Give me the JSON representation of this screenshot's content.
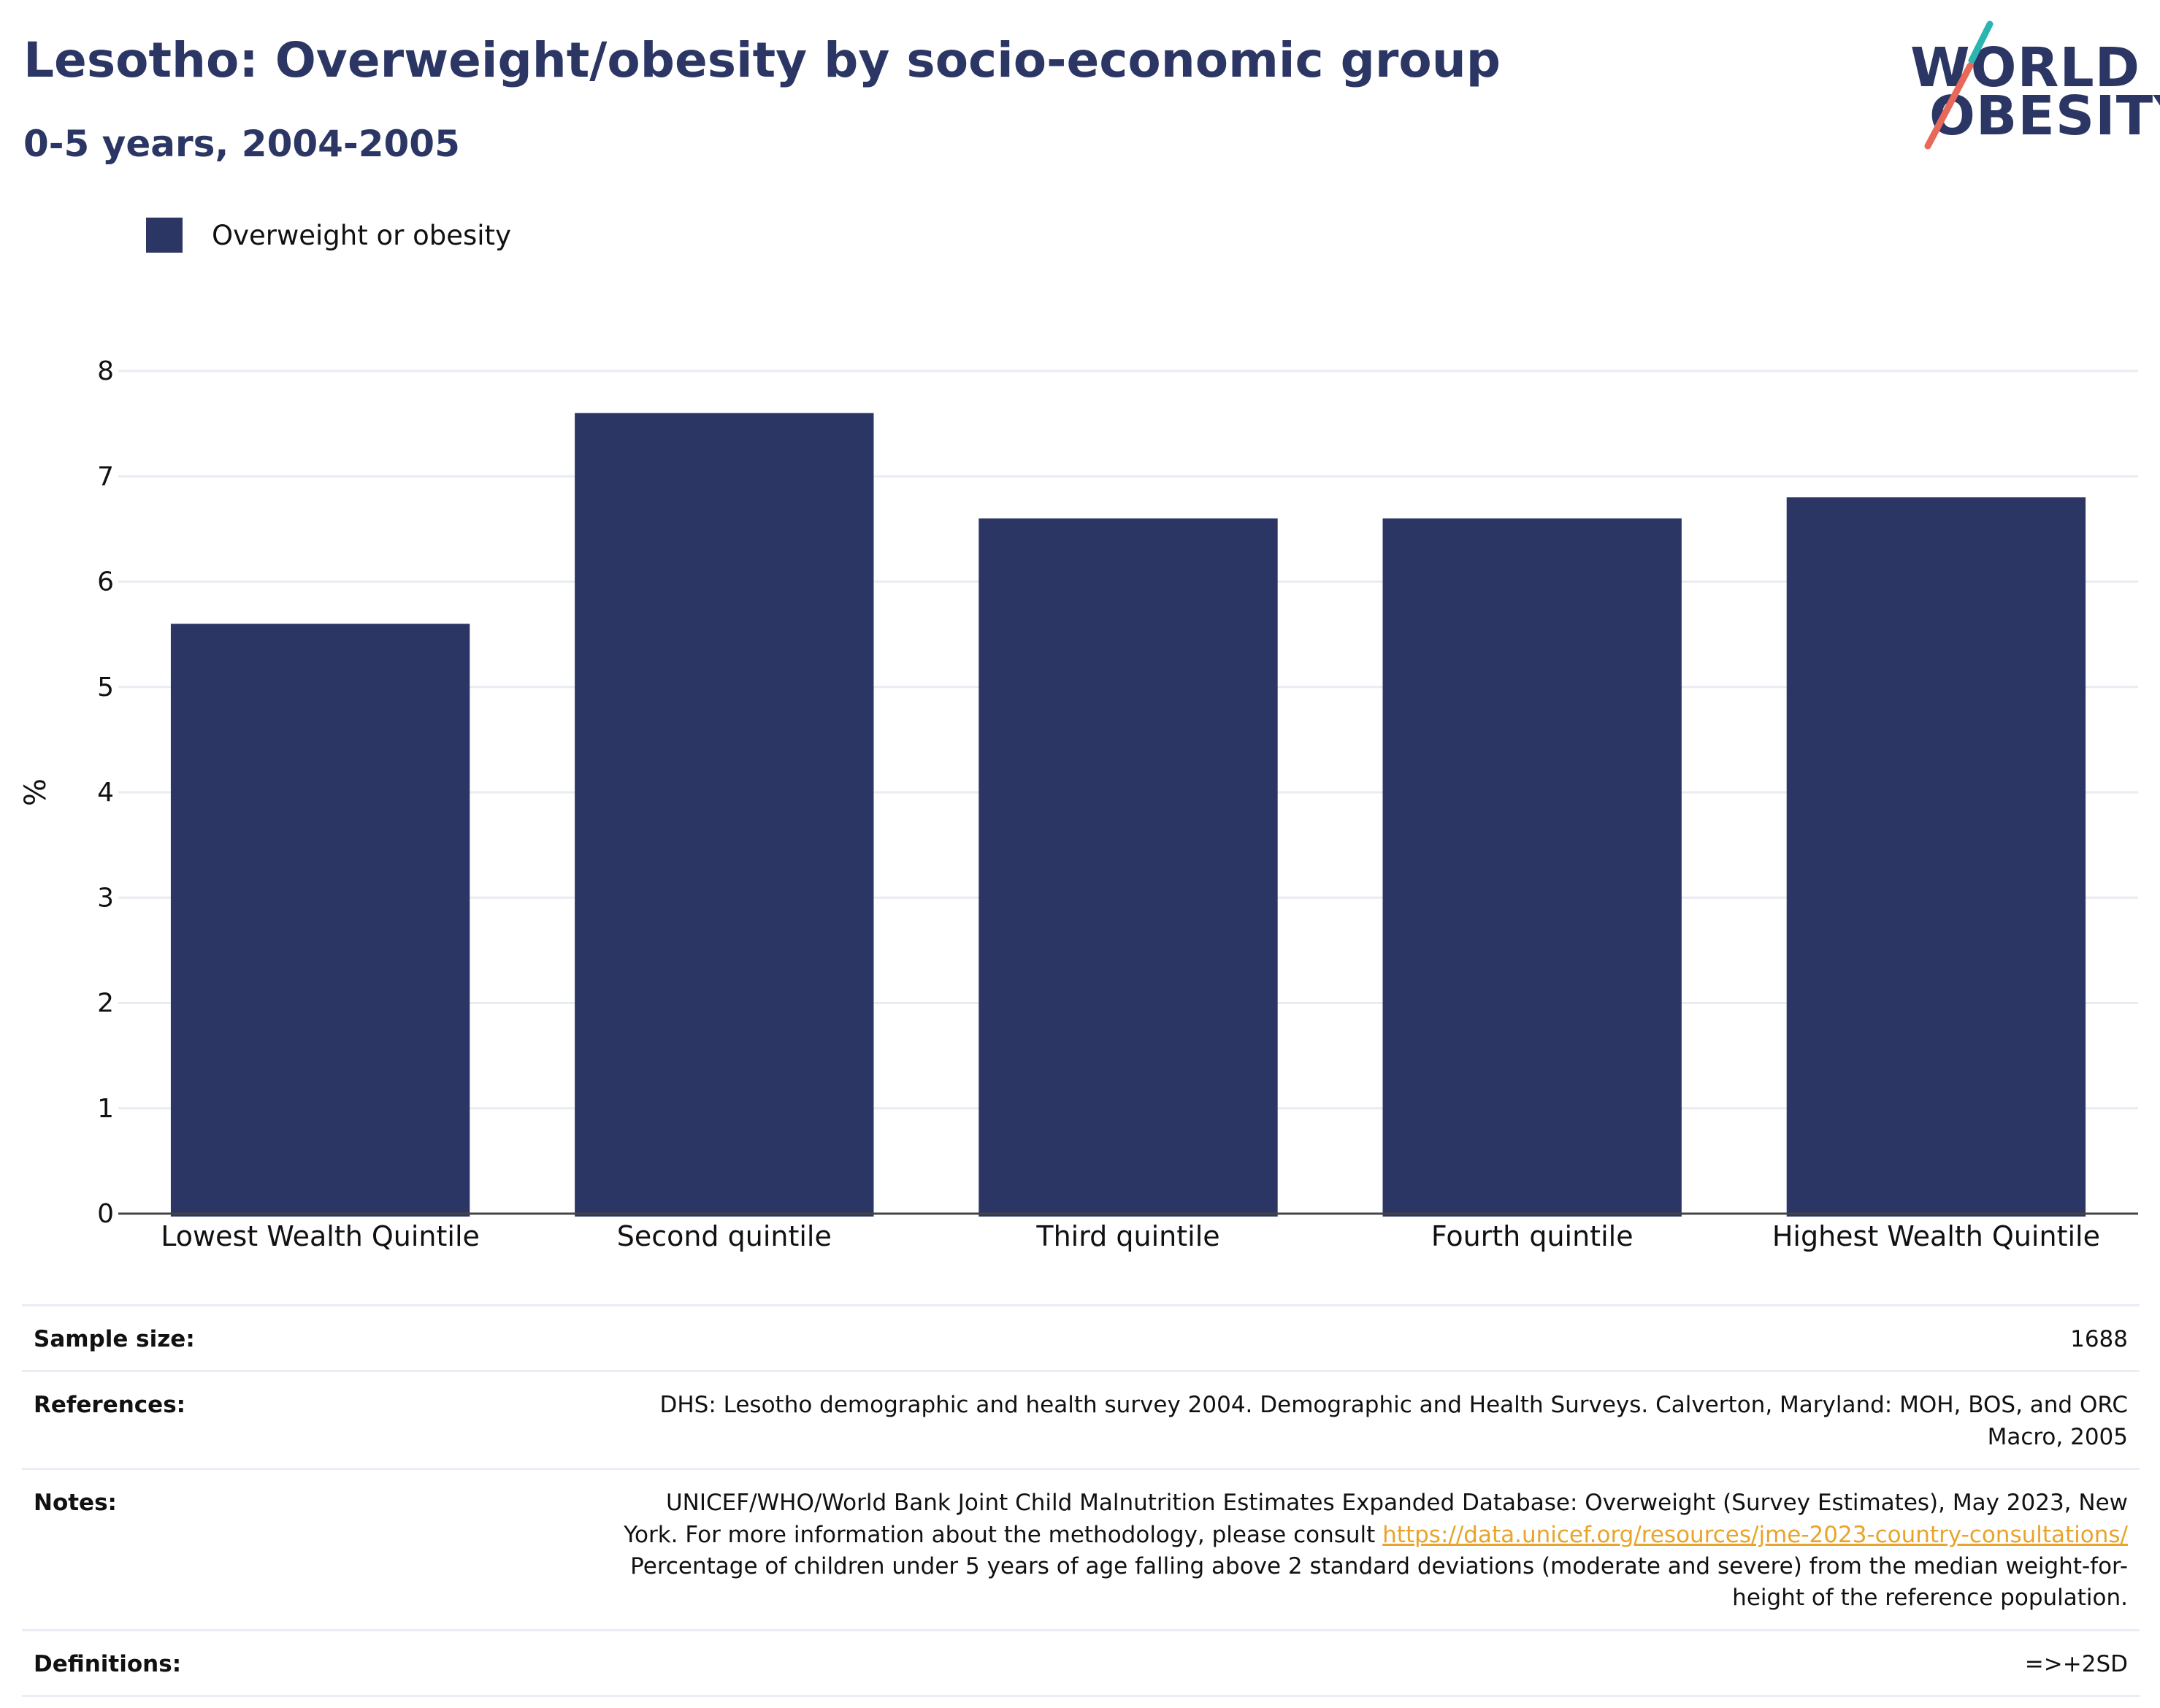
{
  "header": {
    "title": "Lesotho: Overweight/obesity by socio-economic group",
    "subtitle": "0-5 years, 2004-2005"
  },
  "logo": {
    "line1": "WORLD",
    "line2": "OBESITY",
    "accent_top": "#2bb5b0",
    "accent_bottom": "#e8685a",
    "text_color": "#2b3664"
  },
  "legend": {
    "label": "Overweight or obesity",
    "color": "#2b3664"
  },
  "chart_data": {
    "type": "bar",
    "categories": [
      "Lowest Wealth Quintile",
      "Second quintile",
      "Third quintile",
      "Fourth quintile",
      "Highest Wealth Quintile"
    ],
    "series": [
      {
        "name": "Overweight or obesity",
        "values": [
          5.6,
          7.6,
          6.6,
          6.6,
          6.8
        ],
        "color": "#2b3664"
      }
    ],
    "ylabel": "%",
    "xlabel": "",
    "ylim": [
      0,
      8
    ],
    "yticks": [
      0,
      1,
      2,
      3,
      4,
      5,
      6,
      7,
      8
    ],
    "grid": true,
    "legend_position": "top-left"
  },
  "meta": {
    "sample_size_label": "Sample size:",
    "sample_size_value": "1688",
    "references_label": "References:",
    "references_line1": "DHS: Lesotho demographic and health survey 2004. Demographic and Health Surveys. Calverton, Maryland: MOH, BOS, and ORC",
    "references_line2": "Macro, 2005",
    "notes_label": "Notes:",
    "notes_line1": "UNICEF/WHO/World Bank Joint Child Malnutrition Estimates Expanded Database: Overweight (Survey Estimates), May 2023, New",
    "notes_line2_prefix": "York. For more information about the methodology, please consult ",
    "notes_link": "https://data.unicef.org/resources/jme-2023-country-consultations/",
    "notes_line3": "Percentage of children under 5 years of age falling above 2 standard deviations (moderate and severe) from the median weight-for-",
    "notes_line4": "height of the reference population.",
    "definitions_label": "Definitions:",
    "definitions_value": "=>+2SD",
    "link_color": "#e8a42b"
  }
}
